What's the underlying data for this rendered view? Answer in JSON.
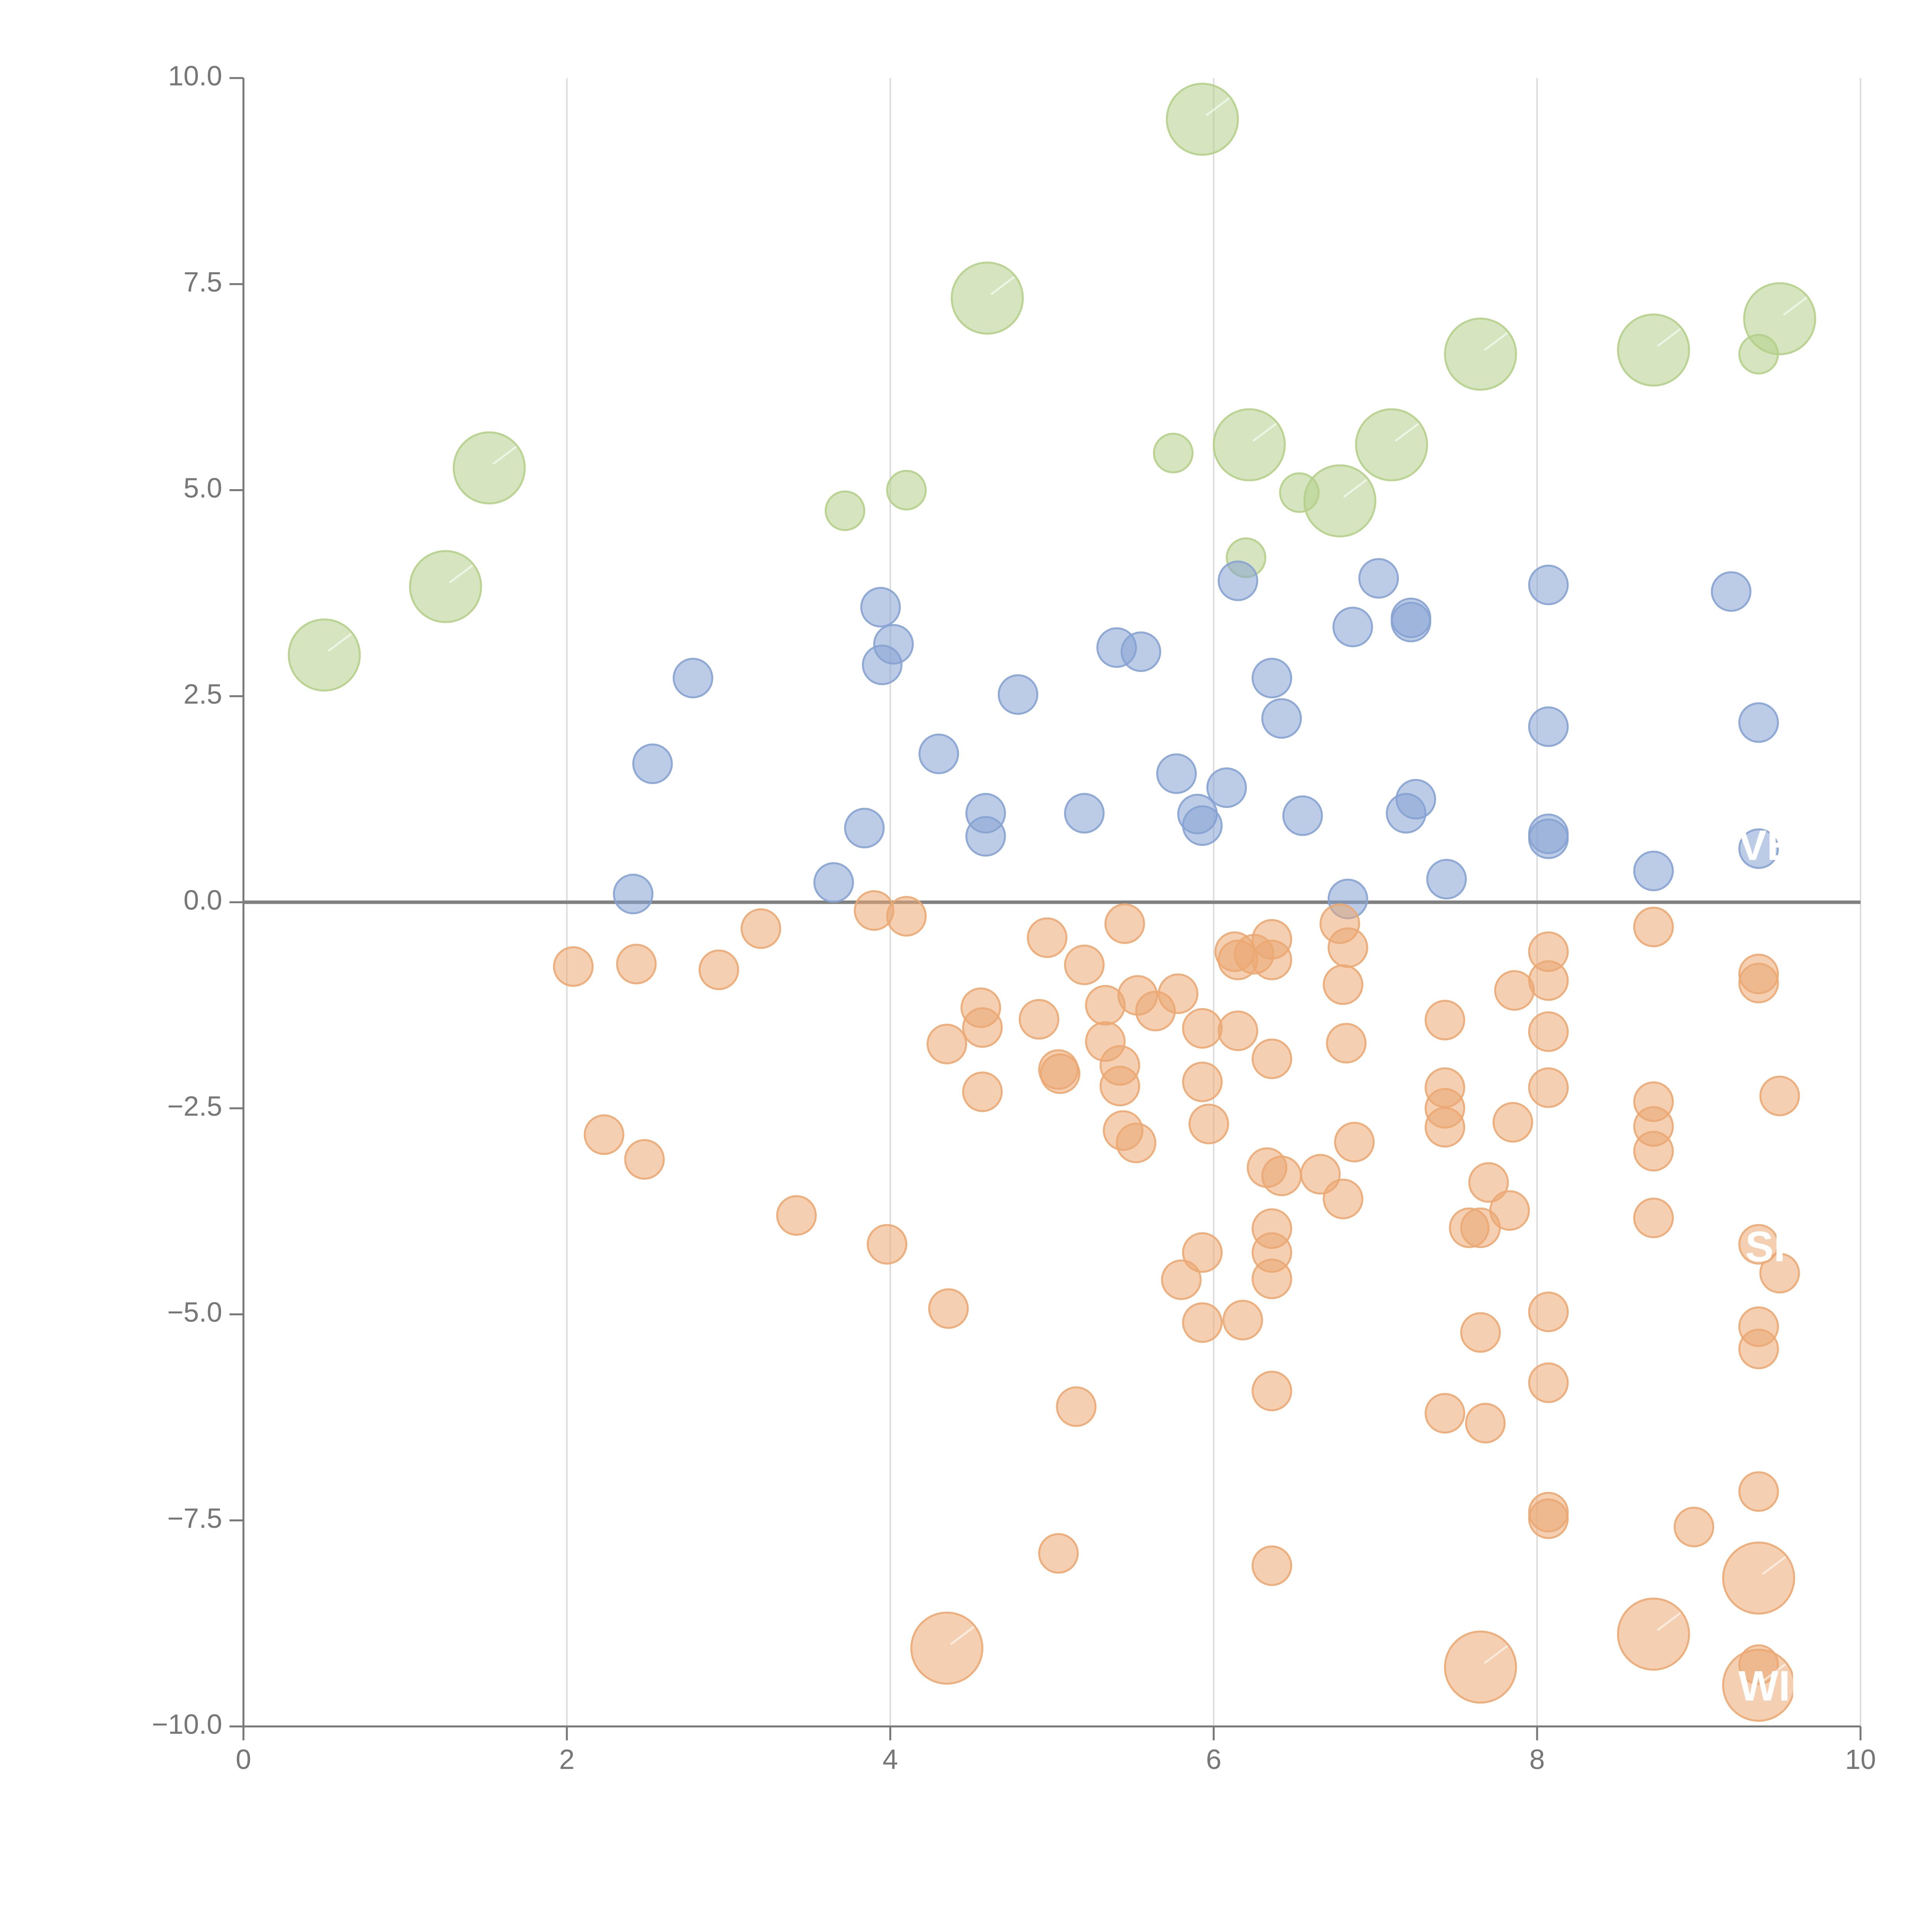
{
  "chart_data": {
    "type": "scatter",
    "title": "",
    "xlabel": "",
    "ylabel": "",
    "xlim": [
      0,
      10
    ],
    "ylim": [
      -10,
      10
    ],
    "x_ticks": [
      0,
      2,
      4,
      6,
      8,
      10
    ],
    "x_tick_labels": [
      "0",
      "2",
      "4",
      "6",
      "8",
      "10"
    ],
    "y_ticks": [
      -10,
      -7.5,
      -5,
      -2.5,
      0,
      2.5,
      5,
      7.5,
      10
    ],
    "y_tick_labels": [
      "−10.0",
      "−7.5",
      "−5.0",
      "−2.5",
      "0.0",
      "2.5",
      "5.0",
      "7.5",
      "10.0"
    ],
    "x_grid": true,
    "y_grid": false,
    "baseline": 0,
    "colors": {
      "green": "#b5cf8a",
      "blue": "#86a3d2",
      "orange": "#eba873",
      "axis": "#777777",
      "grid": "#dddddd",
      "baseline": "#808080"
    },
    "series": [
      {
        "name": "green",
        "color": "#b5cf8a",
        "points": [
          {
            "x": 0.5,
            "y": 3.0,
            "size": "large"
          },
          {
            "x": 1.25,
            "y": 3.83,
            "size": "large"
          },
          {
            "x": 1.52,
            "y": 5.27,
            "size": "large"
          },
          {
            "x": 3.72,
            "y": 4.75,
            "size": "small"
          },
          {
            "x": 4.1,
            "y": 5.0,
            "size": "small"
          },
          {
            "x": 4.6,
            "y": 7.33,
            "size": "large"
          },
          {
            "x": 5.75,
            "y": 5.45,
            "size": "small"
          },
          {
            "x": 5.93,
            "y": 9.5,
            "size": "large"
          },
          {
            "x": 6.2,
            "y": 4.18,
            "size": "small"
          },
          {
            "x": 6.22,
            "y": 5.55,
            "size": "large"
          },
          {
            "x": 6.53,
            "y": 4.97,
            "size": "small"
          },
          {
            "x": 6.78,
            "y": 4.87,
            "size": "large"
          },
          {
            "x": 7.1,
            "y": 5.55,
            "size": "large"
          },
          {
            "x": 7.65,
            "y": 6.65,
            "size": "large"
          },
          {
            "x": 8.72,
            "y": 6.7,
            "size": "large"
          },
          {
            "x": 9.37,
            "y": 6.65,
            "size": "small"
          },
          {
            "x": 9.5,
            "y": 7.08,
            "size": "large"
          }
        ]
      },
      {
        "name": "blue",
        "color": "#86a3d2",
        "points": [
          {
            "x": 2.41,
            "y": 0.1
          },
          {
            "x": 2.53,
            "y": 1.68
          },
          {
            "x": 2.78,
            "y": 2.72
          },
          {
            "x": 3.65,
            "y": 0.24
          },
          {
            "x": 3.84,
            "y": 0.9
          },
          {
            "x": 3.94,
            "y": 3.58
          },
          {
            "x": 3.95,
            "y": 2.88
          },
          {
            "x": 4.02,
            "y": 3.13
          },
          {
            "x": 4.3,
            "y": 1.8
          },
          {
            "x": 4.59,
            "y": 1.08
          },
          {
            "x": 4.59,
            "y": 0.8
          },
          {
            "x": 4.79,
            "y": 2.52
          },
          {
            "x": 5.2,
            "y": 1.08
          },
          {
            "x": 5.4,
            "y": 3.09
          },
          {
            "x": 5.55,
            "y": 3.04
          },
          {
            "x": 5.77,
            "y": 1.56
          },
          {
            "x": 5.9,
            "y": 1.07
          },
          {
            "x": 5.93,
            "y": 0.93
          },
          {
            "x": 6.08,
            "y": 1.39
          },
          {
            "x": 6.15,
            "y": 3.9
          },
          {
            "x": 6.36,
            "y": 2.72
          },
          {
            "x": 6.42,
            "y": 2.23
          },
          {
            "x": 6.55,
            "y": 1.05
          },
          {
            "x": 6.83,
            "y": 0.04
          },
          {
            "x": 6.86,
            "y": 3.34
          },
          {
            "x": 7.02,
            "y": 3.93
          },
          {
            "x": 7.19,
            "y": 1.08
          },
          {
            "x": 7.22,
            "y": 3.45
          },
          {
            "x": 7.22,
            "y": 3.4
          },
          {
            "x": 7.25,
            "y": 1.25
          },
          {
            "x": 7.44,
            "y": 0.28
          },
          {
            "x": 8.07,
            "y": 3.85
          },
          {
            "x": 8.07,
            "y": 2.13
          },
          {
            "x": 8.07,
            "y": 0.83
          },
          {
            "x": 8.07,
            "y": 0.77
          },
          {
            "x": 8.72,
            "y": 0.38
          },
          {
            "x": 9.2,
            "y": 3.77
          },
          {
            "x": 9.37,
            "y": 2.18
          },
          {
            "x": 9.37,
            "y": 0.65
          }
        ]
      },
      {
        "name": "orange",
        "color": "#eba873",
        "points": [
          {
            "x": 2.04,
            "y": -0.78
          },
          {
            "x": 2.23,
            "y": -2.82
          },
          {
            "x": 2.43,
            "y": -0.75
          },
          {
            "x": 2.48,
            "y": -3.12
          },
          {
            "x": 2.94,
            "y": -0.82
          },
          {
            "x": 3.2,
            "y": -0.32
          },
          {
            "x": 3.42,
            "y": -3.8
          },
          {
            "x": 3.9,
            "y": -0.1
          },
          {
            "x": 3.98,
            "y": -4.15
          },
          {
            "x": 4.1,
            "y": -0.17
          },
          {
            "x": 4.35,
            "y": -1.72
          },
          {
            "x": 4.36,
            "y": -4.93
          },
          {
            "x": 4.35,
            "y": -9.05,
            "size": "large"
          },
          {
            "x": 4.56,
            "y": -1.28
          },
          {
            "x": 4.57,
            "y": -1.52
          },
          {
            "x": 4.57,
            "y": -2.3
          },
          {
            "x": 4.92,
            "y": -1.42
          },
          {
            "x": 4.97,
            "y": -0.43
          },
          {
            "x": 5.04,
            "y": -2.03
          },
          {
            "x": 5.05,
            "y": -2.08
          },
          {
            "x": 5.04,
            "y": -7.9
          },
          {
            "x": 5.15,
            "y": -6.12
          },
          {
            "x": 5.2,
            "y": -0.76
          },
          {
            "x": 5.33,
            "y": -1.25
          },
          {
            "x": 5.33,
            "y": -1.69
          },
          {
            "x": 5.42,
            "y": -1.98
          },
          {
            "x": 5.42,
            "y": -2.23
          },
          {
            "x": 5.44,
            "y": -2.77
          },
          {
            "x": 5.45,
            "y": -0.26
          },
          {
            "x": 5.52,
            "y": -2.92
          },
          {
            "x": 5.53,
            "y": -1.13
          },
          {
            "x": 5.64,
            "y": -1.32
          },
          {
            "x": 5.78,
            "y": -1.11
          },
          {
            "x": 5.8,
            "y": -4.58
          },
          {
            "x": 5.93,
            "y": -1.53
          },
          {
            "x": 5.93,
            "y": -2.18
          },
          {
            "x": 5.93,
            "y": -4.25
          },
          {
            "x": 5.93,
            "y": -5.1
          },
          {
            "x": 5.97,
            "y": -2.69
          },
          {
            "x": 6.13,
            "y": -0.6
          },
          {
            "x": 6.15,
            "y": -0.7
          },
          {
            "x": 6.15,
            "y": -1.56
          },
          {
            "x": 6.18,
            "y": -5.07
          },
          {
            "x": 6.25,
            "y": -0.63
          },
          {
            "x": 6.33,
            "y": -3.22
          },
          {
            "x": 6.36,
            "y": -0.45
          },
          {
            "x": 6.36,
            "y": -0.7
          },
          {
            "x": 6.36,
            "y": -1.9
          },
          {
            "x": 6.36,
            "y": -3.96
          },
          {
            "x": 6.36,
            "y": -4.25
          },
          {
            "x": 6.36,
            "y": -4.57
          },
          {
            "x": 6.36,
            "y": -5.93
          },
          {
            "x": 6.36,
            "y": -8.05
          },
          {
            "x": 6.42,
            "y": -3.32
          },
          {
            "x": 6.66,
            "y": -3.3
          },
          {
            "x": 6.78,
            "y": -0.26
          },
          {
            "x": 6.8,
            "y": -1.0
          },
          {
            "x": 6.8,
            "y": -3.6
          },
          {
            "x": 6.82,
            "y": -1.71
          },
          {
            "x": 6.83,
            "y": -0.55
          },
          {
            "x": 6.87,
            "y": -2.91
          },
          {
            "x": 7.43,
            "y": -1.43
          },
          {
            "x": 7.43,
            "y": -2.25
          },
          {
            "x": 7.43,
            "y": -2.5
          },
          {
            "x": 7.43,
            "y": -2.73
          },
          {
            "x": 7.43,
            "y": -6.2
          },
          {
            "x": 7.58,
            "y": -3.95
          },
          {
            "x": 7.65,
            "y": -3.95
          },
          {
            "x": 7.65,
            "y": -5.22
          },
          {
            "x": 7.65,
            "y": -9.28,
            "size": "large"
          },
          {
            "x": 7.68,
            "y": -6.32
          },
          {
            "x": 7.7,
            "y": -3.4
          },
          {
            "x": 7.83,
            "y": -3.74
          },
          {
            "x": 7.85,
            "y": -2.67
          },
          {
            "x": 7.86,
            "y": -1.07
          },
          {
            "x": 8.07,
            "y": -0.6
          },
          {
            "x": 8.07,
            "y": -0.95
          },
          {
            "x": 8.07,
            "y": -1.57
          },
          {
            "x": 8.07,
            "y": -2.25
          },
          {
            "x": 8.07,
            "y": -4.97
          },
          {
            "x": 8.07,
            "y": -5.83
          },
          {
            "x": 8.07,
            "y": -7.4
          },
          {
            "x": 8.07,
            "y": -7.48
          },
          {
            "x": 8.72,
            "y": -0.3
          },
          {
            "x": 8.72,
            "y": -2.42
          },
          {
            "x": 8.72,
            "y": -2.72
          },
          {
            "x": 8.72,
            "y": -3.02
          },
          {
            "x": 8.72,
            "y": -3.83
          },
          {
            "x": 8.72,
            "y": -8.88,
            "size": "large"
          },
          {
            "x": 8.97,
            "y": -7.58
          },
          {
            "x": 9.37,
            "y": -0.87
          },
          {
            "x": 9.37,
            "y": -0.98
          },
          {
            "x": 9.37,
            "y": -4.15
          },
          {
            "x": 9.37,
            "y": -5.15
          },
          {
            "x": 9.37,
            "y": -5.42
          },
          {
            "x": 9.37,
            "y": -7.15
          },
          {
            "x": 9.37,
            "y": -8.2,
            "size": "large"
          },
          {
            "x": 9.37,
            "y": -9.25
          },
          {
            "x": 9.37,
            "y": -9.5,
            "size": "large"
          },
          {
            "x": 9.5,
            "y": -2.35
          },
          {
            "x": 9.5,
            "y": -4.5
          }
        ]
      }
    ],
    "annotations": [
      {
        "text": "WIN",
        "x": 9.5,
        "y": -9.55
      },
      {
        "text": "SK",
        "x": 9.47,
        "y": -4.22
      },
      {
        "text": "VE",
        "x": 9.42,
        "y": 0.65
      }
    ]
  }
}
